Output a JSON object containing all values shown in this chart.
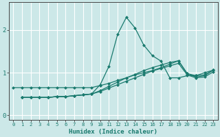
{
  "xlabel": "Humidex (Indice chaleur)",
  "ylabel": "",
  "bg_color": "#cce8e8",
  "grid_color": "#ffffff",
  "line_color": "#1a7a6e",
  "xlim": [
    -0.5,
    23.5
  ],
  "ylim": [
    -0.1,
    2.65
  ],
  "yticks": [
    0,
    1,
    2
  ],
  "xticks": [
    0,
    1,
    2,
    3,
    4,
    5,
    6,
    7,
    8,
    9,
    10,
    11,
    12,
    13,
    14,
    15,
    16,
    17,
    18,
    19,
    20,
    21,
    22,
    23
  ],
  "line1_x": [
    0,
    1,
    2,
    3,
    4,
    5,
    6,
    7,
    8,
    9,
    10,
    11,
    12,
    13,
    14,
    15,
    16,
    17,
    18,
    19,
    20,
    21,
    22,
    23
  ],
  "line1_y": [
    0.65,
    0.65,
    0.65,
    0.65,
    0.65,
    0.65,
    0.65,
    0.65,
    0.65,
    0.65,
    0.7,
    0.75,
    0.82,
    0.88,
    0.95,
    1.0,
    1.05,
    1.12,
    1.2,
    1.28,
    0.98,
    0.93,
    0.95,
    1.06
  ],
  "line2_x": [
    1,
    2,
    3,
    4,
    5,
    6,
    7,
    8,
    9,
    10,
    11,
    12,
    13,
    14,
    15,
    16,
    17,
    18,
    19,
    20,
    21,
    22,
    23
  ],
  "line2_y": [
    0.42,
    0.42,
    0.42,
    0.42,
    0.44,
    0.44,
    0.46,
    0.48,
    0.5,
    0.72,
    1.15,
    1.9,
    2.3,
    2.05,
    1.65,
    1.4,
    1.27,
    0.88,
    0.88,
    0.93,
    0.93,
    1.0,
    1.06
  ],
  "line3_x": [
    1,
    2,
    3,
    4,
    5,
    6,
    7,
    8,
    9,
    10,
    11,
    12,
    13,
    14,
    15,
    16,
    17,
    18,
    19,
    20,
    21,
    22,
    23
  ],
  "line3_y": [
    0.42,
    0.42,
    0.42,
    0.42,
    0.44,
    0.44,
    0.46,
    0.48,
    0.5,
    0.58,
    0.68,
    0.78,
    0.88,
    0.96,
    1.05,
    1.12,
    1.18,
    1.24,
    1.28,
    0.98,
    0.9,
    0.93,
    1.06
  ],
  "line4_x": [
    1,
    2,
    3,
    4,
    5,
    6,
    7,
    8,
    9,
    10,
    11,
    12,
    13,
    14,
    15,
    16,
    17,
    18,
    19,
    20,
    21,
    22,
    23
  ],
  "line4_y": [
    0.42,
    0.42,
    0.42,
    0.42,
    0.44,
    0.44,
    0.46,
    0.48,
    0.5,
    0.56,
    0.64,
    0.72,
    0.8,
    0.88,
    0.96,
    1.04,
    1.1,
    1.16,
    1.22,
    0.95,
    0.88,
    0.9,
    1.02
  ]
}
